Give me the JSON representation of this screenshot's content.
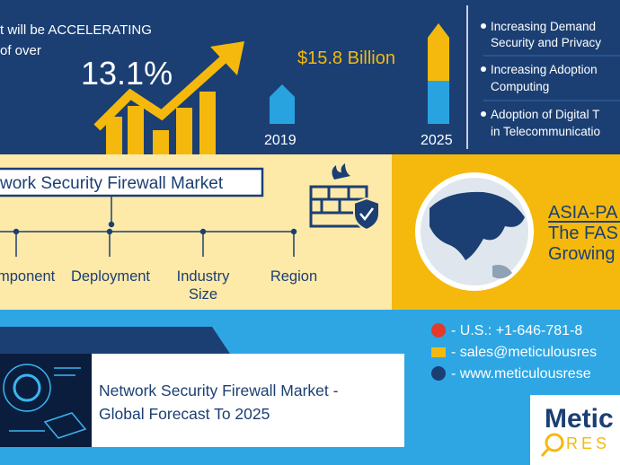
{
  "header": {
    "growth_lines": [
      "t will be ACCELERATING",
      "of over"
    ],
    "cagr": "13.1%",
    "market_value": "$15.8 Billion",
    "years": [
      "2019",
      "2025"
    ],
    "drivers": [
      [
        "Increasing Demand",
        "Security and Privacy"
      ],
      [
        "Increasing Adoption",
        "Computing"
      ],
      [
        "Adoption of Digital T",
        "in Telecommunicatio"
      ]
    ]
  },
  "segmentation": {
    "title": "work Security Firewall Market",
    "segments": [
      [
        "mponent"
      ],
      [
        "Deployment"
      ],
      [
        "Industry",
        "Size"
      ],
      [
        "Region"
      ]
    ]
  },
  "region": {
    "lines": [
      "ASIA-PA",
      "The FAS",
      "Growing"
    ]
  },
  "contact": {
    "phone": "- U.S.: +1-646-781-8",
    "email": "- sales@meticulousres",
    "web": "- www.meticulousrese"
  },
  "report": {
    "title_lines": [
      "Network Security Firewall Market -",
      "Global Forecast To 2025"
    ]
  },
  "logo": {
    "name": "Metic",
    "sub": "RES"
  }
}
